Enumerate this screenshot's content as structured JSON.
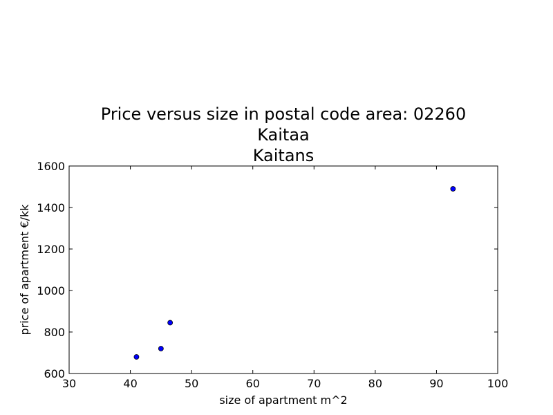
{
  "chart_data": {
    "type": "scatter",
    "title": [
      "Price versus size in postal code area: 02260",
      "Kaitaa",
      "Kaitans"
    ],
    "xlabel": "size of apartment m^2",
    "ylabel": "price of apartment €/kk",
    "xlim": [
      30,
      100
    ],
    "ylim": [
      600,
      1600
    ],
    "xticks": [
      30,
      40,
      50,
      60,
      70,
      80,
      90,
      100
    ],
    "yticks": [
      600,
      800,
      1000,
      1200,
      1400,
      1600
    ],
    "grid": false,
    "series": [
      {
        "color": "#0000ff",
        "points": [
          {
            "x": 41,
            "y": 680
          },
          {
            "x": 45,
            "y": 720
          },
          {
            "x": 46.5,
            "y": 845
          },
          {
            "x": 92.7,
            "y": 1490
          }
        ]
      }
    ]
  }
}
